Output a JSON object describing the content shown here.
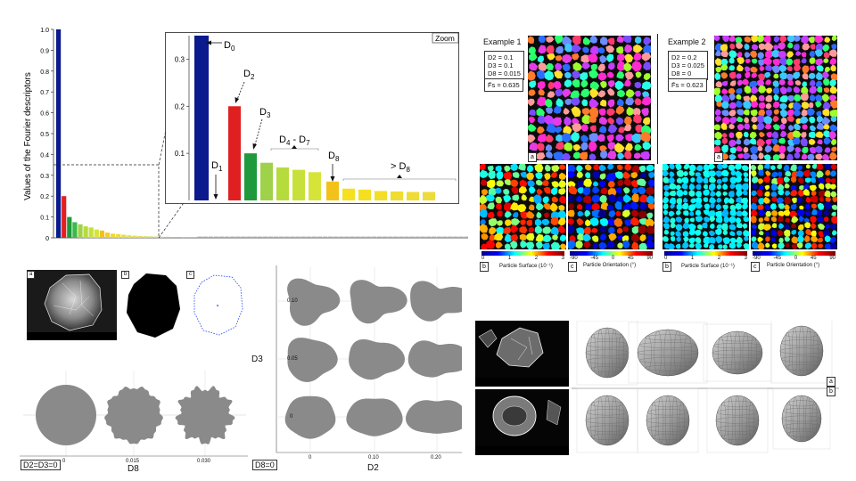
{
  "chart_data": {
    "type": "bar",
    "ylabel": "Values of the Fourier descriptors",
    "yticks": [
      "0",
      "0.1",
      "0.2",
      "0.3",
      "0.4",
      "0.5",
      "0.6",
      "0.7",
      "0.8",
      "0.9",
      "1.0"
    ],
    "ylim": [
      0,
      1.0
    ],
    "values": [
      1.0,
      0.2,
      0.1,
      0.075,
      0.065,
      0.055,
      0.05,
      0.04,
      0.035,
      0.025,
      0.02,
      0.018,
      0.015,
      0.012,
      0.01,
      0.009,
      0.008,
      0.007,
      0.006,
      0.005,
      0.005,
      0.004,
      0.004,
      0.003,
      0.003,
      0.003
    ],
    "colors": [
      "#0b1a8c",
      "#e02020",
      "#1e9a3c",
      "#3db84a",
      "#9fd24a",
      "#b6db3c",
      "#c7e13a",
      "#d6e43a",
      "#f2c21a",
      "#f3cf22",
      "#f0d82a",
      "#ecdc30",
      "#e8df38",
      "#e5e040",
      "#e2e048",
      "#dfdf55",
      "#dcdd60",
      "#d8d968",
      "#d3d470",
      "#cccc78",
      "#c4c480",
      "#bcbc88",
      "#b4b490",
      "#acac98",
      "#a4a4a0",
      "#9c9ca8"
    ],
    "zoom": {
      "title": "Zoom",
      "yticks": [
        "0.1",
        "0.2",
        "0.3"
      ],
      "ylim": [
        0,
        0.35
      ],
      "values": [
        0.35,
        0.2,
        0.1,
        0.08,
        0.07,
        0.065,
        0.06,
        0.04,
        0.025,
        0.023,
        0.02,
        0.019,
        0.018,
        0.018
      ],
      "colors": [
        "#0b1a8c",
        "#e02020",
        "#1e9a3c",
        "#9fd24a",
        "#b6db3c",
        "#c7e13a",
        "#d6e43a",
        "#f2c21a",
        "#f6e020",
        "#f4df22",
        "#f2de28",
        "#f0dd2e",
        "#eedc34",
        "#ecdb3a"
      ],
      "annotations": {
        "d0": "D",
        "d0_sub": "0",
        "d1": "D",
        "d1_sub": "1",
        "d2": "D",
        "d2_sub": "2",
        "d3": "D",
        "d3_sub": "3",
        "d4d7": "D",
        "d4d7_sub1": "4",
        "d4d7_mid": " - D",
        "d4d7_sub2": "7",
        "d8": "D",
        "d8_sub": "8",
        "gtd8": "> D",
        "gtd8_sub": "8"
      }
    }
  },
  "examples": {
    "example1": {
      "title": "Example 1",
      "lines": [
        "D2 = 0.1",
        "D3 = 0.1",
        "D8 = 0.015"
      ],
      "f": "F̄s = 0.635",
      "panel_a": "a",
      "panel_b": "b",
      "panel_c": "c",
      "cbar_b_label": "Particle Surface (10⁻¹)",
      "cbar_c_label": "Particle Orientation (°)",
      "cbar_b_ticks": [
        "0",
        "1",
        "2",
        "3"
      ],
      "cbar_c_ticks": [
        "-90",
        "-45",
        "0",
        "45",
        "90"
      ]
    },
    "example2": {
      "title": "Example 2",
      "lines": [
        "D2 = 0.2",
        "D3 = 0.025",
        "D8 = 0"
      ],
      "f": "F̄s = 0.623",
      "panel_a": "a",
      "panel_b": "b",
      "panel_c": "c",
      "cbar_b_label": "Particle Surface (10⁻¹)",
      "cbar_c_label": "Particle Orientation (°)",
      "cbar_b_ticks": [
        "0",
        "1",
        "2",
        "3"
      ],
      "cbar_c_ticks": [
        "-90",
        "-45",
        "0",
        "45",
        "90"
      ]
    }
  },
  "sem_particle": {
    "label_a": "a",
    "label_b": "b",
    "label_c": "c"
  },
  "d8_panel": {
    "xlabel": "D8",
    "ticks": [
      "0",
      "0.015",
      "0.030"
    ],
    "condition": "D2=D3=0"
  },
  "grid_panel": {
    "ylabel": "D3",
    "xlabel": "D2",
    "yticks": [
      "0",
      "0.05",
      "0.10"
    ],
    "xticks": [
      "0",
      "0.10",
      "0.20"
    ],
    "condition": "D8=0"
  },
  "right_3d": {
    "label_a": "a",
    "label_b": "b"
  }
}
